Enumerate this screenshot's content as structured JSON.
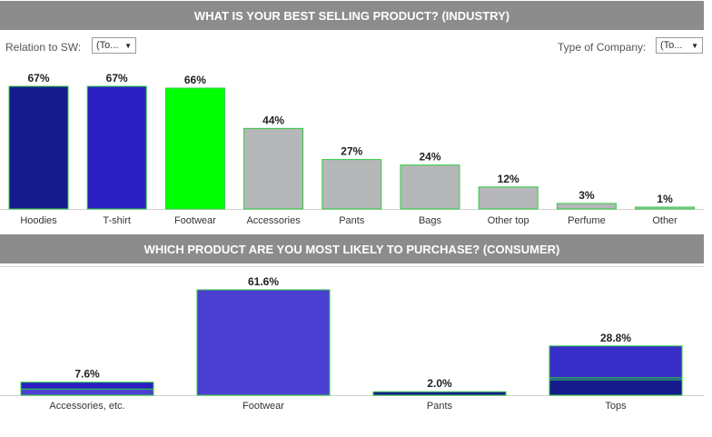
{
  "section1": {
    "title": "WHAT IS YOUR BEST SELLING PRODUCT? (INDUSTRY)",
    "filters": {
      "relation_label": "Relation to SW:",
      "relation_value": "(To...",
      "company_label": "Type of Company:",
      "company_value": "(To..."
    }
  },
  "section2": {
    "title": "WHICH PRODUCT ARE YOU MOST LIKELY TO PURCHASE? (CONSUMER)"
  },
  "colors": {
    "navy": "#161a8c",
    "blue": "#2b1fc4",
    "green": "#00ff00",
    "gray": "#b5b7b8",
    "purple": "#4a3fd0",
    "outline": "#2ecc40"
  },
  "chart_data": [
    {
      "type": "bar",
      "title": "WHAT IS YOUR BEST SELLING PRODUCT? (INDUSTRY)",
      "categories": [
        "Hoodies",
        "T-shirt",
        "Footwear",
        "Accessories",
        "Pants",
        "Bags",
        "Other top",
        "Perfume",
        "Other"
      ],
      "values": [
        67,
        67,
        66,
        44,
        27,
        24,
        12,
        3,
        1
      ],
      "value_labels": [
        "67%",
        "67%",
        "66%",
        "44%",
        "27%",
        "24%",
        "12%",
        "3%",
        "1%"
      ],
      "colors": [
        "#161a8c",
        "#2b1fc4",
        "#00ff00",
        "#b5b7b8",
        "#b5b7b8",
        "#b5b7b8",
        "#b5b7b8",
        "#b5b7b8",
        "#b5b7b8"
      ],
      "ylim": [
        0,
        67
      ],
      "grid": false
    },
    {
      "type": "bar",
      "title": "WHICH PRODUCT ARE YOU MOST LIKELY TO PURCHASE? (CONSUMER)",
      "categories": [
        "Accessories, etc.",
        "Footwear",
        "Pants",
        "Tops"
      ],
      "values": [
        7.6,
        61.6,
        2.0,
        28.8
      ],
      "value_labels": [
        "7.6%",
        "61.6%",
        "2.0%",
        "28.8%"
      ],
      "segments": [
        [
          {
            "value": 3.6,
            "color": "#4a3fd0"
          },
          {
            "value": 4.0,
            "color": "#2b1fc4"
          }
        ],
        [
          {
            "value": 61.6,
            "color": "#4a3fd0"
          }
        ],
        [
          {
            "value": 2.0,
            "color": "#161a8c"
          }
        ],
        [
          {
            "value": 9.0,
            "color": "#161a8c"
          },
          {
            "value": 1.2,
            "color": "#2b1fc4"
          },
          {
            "value": 18.6,
            "color": "#3a2ec8"
          }
        ]
      ],
      "ylim": [
        0,
        61.6
      ],
      "grid": false
    }
  ]
}
